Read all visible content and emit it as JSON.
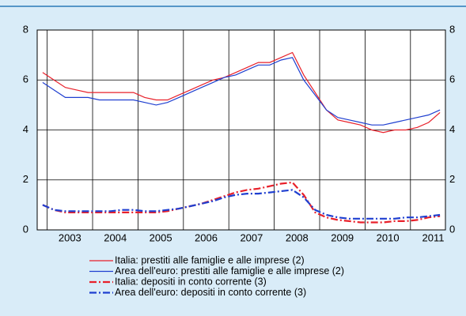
{
  "chart_data": {
    "type": "line",
    "x": [
      2002.9,
      2003.15,
      2003.4,
      2003.65,
      2003.9,
      2004.15,
      2004.4,
      2004.65,
      2004.9,
      2005.15,
      2005.4,
      2005.65,
      2005.9,
      2006.15,
      2006.4,
      2006.65,
      2006.9,
      2007.15,
      2007.4,
      2007.65,
      2007.9,
      2008.15,
      2008.4,
      2008.65,
      2008.9,
      2009.15,
      2009.4,
      2009.65,
      2009.9,
      2010.15,
      2010.4,
      2010.65,
      2010.9,
      2011.15,
      2011.4,
      2011.65
    ],
    "series": [
      {
        "name": "Italia: prestiti alle famiglie e alle imprese (2)",
        "color": "#e8202a",
        "dash": false,
        "values": [
          6.3,
          6.0,
          5.7,
          5.6,
          5.5,
          5.5,
          5.5,
          5.5,
          5.5,
          5.3,
          5.2,
          5.2,
          5.4,
          5.6,
          5.8,
          6.0,
          6.1,
          6.3,
          6.5,
          6.7,
          6.7,
          6.9,
          7.1,
          6.2,
          5.5,
          4.8,
          4.4,
          4.3,
          4.2,
          4.0,
          3.9,
          4.0,
          4.0,
          4.1,
          4.3,
          4.7
        ]
      },
      {
        "name": "Area dell'euro: prestiti alle famiglie e alle imprese (2)",
        "color": "#1f3fd0",
        "dash": false,
        "values": [
          5.9,
          5.6,
          5.3,
          5.3,
          5.3,
          5.2,
          5.2,
          5.2,
          5.2,
          5.1,
          5.0,
          5.1,
          5.3,
          5.5,
          5.7,
          5.9,
          6.1,
          6.2,
          6.4,
          6.6,
          6.6,
          6.8,
          6.9,
          6.0,
          5.4,
          4.8,
          4.5,
          4.4,
          4.3,
          4.2,
          4.2,
          4.3,
          4.4,
          4.5,
          4.6,
          4.8
        ]
      },
      {
        "name": "Italia: depositi in conto corrente (3)",
        "color": "#e8202a",
        "dash": true,
        "values": [
          1.0,
          0.8,
          0.7,
          0.7,
          0.7,
          0.7,
          0.7,
          0.7,
          0.7,
          0.7,
          0.7,
          0.75,
          0.85,
          0.95,
          1.05,
          1.2,
          1.35,
          1.5,
          1.6,
          1.65,
          1.75,
          1.85,
          1.9,
          1.4,
          0.7,
          0.5,
          0.4,
          0.35,
          0.3,
          0.3,
          0.3,
          0.35,
          0.35,
          0.4,
          0.5,
          0.55
        ]
      },
      {
        "name": "Area dell'euro: depositi in conto corrente (3)",
        "color": "#1f3fd0",
        "dash": true,
        "values": [
          1.0,
          0.8,
          0.75,
          0.75,
          0.75,
          0.75,
          0.75,
          0.8,
          0.8,
          0.75,
          0.75,
          0.8,
          0.85,
          0.95,
          1.05,
          1.15,
          1.3,
          1.4,
          1.45,
          1.45,
          1.5,
          1.55,
          1.6,
          1.3,
          0.8,
          0.6,
          0.5,
          0.45,
          0.45,
          0.45,
          0.45,
          0.45,
          0.5,
          0.5,
          0.55,
          0.6
        ]
      }
    ],
    "xlim": [
      2002.78,
      2011.77
    ],
    "xticks": [
      {
        "value": 2003.5,
        "label": "2003"
      },
      {
        "value": 2004.5,
        "label": "2004"
      },
      {
        "value": 2005.5,
        "label": "2005"
      },
      {
        "value": 2006.5,
        "label": "2006"
      },
      {
        "value": 2007.5,
        "label": "2007"
      },
      {
        "value": 2008.5,
        "label": "2008"
      },
      {
        "value": 2009.5,
        "label": "2009"
      },
      {
        "value": 2010.5,
        "label": "2010"
      },
      {
        "value": 2011.5,
        "label": "2011"
      }
    ],
    "ylim": [
      0,
      8
    ],
    "yticks": [
      0,
      2,
      4,
      6,
      8
    ],
    "y2lim": [
      0,
      8
    ],
    "y2ticks": [
      0,
      2,
      4,
      6,
      8
    ],
    "grid": true
  }
}
